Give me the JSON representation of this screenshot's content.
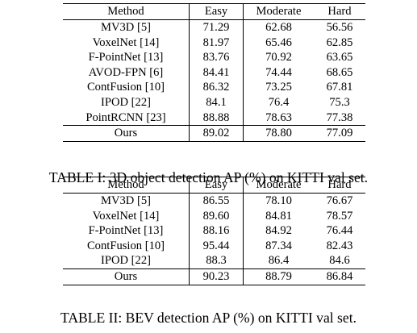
{
  "tables": [
    {
      "caption": "TABLE I: 3D object detection AP (%) on KITTI val set.",
      "headers": [
        "Method",
        "Easy",
        "Moderate",
        "Hard"
      ],
      "rows": [
        {
          "method": "MV3D [5]",
          "easy": "71.29",
          "moderate": "62.68",
          "hard": "56.56"
        },
        {
          "method": "VoxelNet [14]",
          "easy": "81.97",
          "moderate": "65.46",
          "hard": "62.85"
        },
        {
          "method": "F-PointNet [13]",
          "easy": "83.76",
          "moderate": "70.92",
          "hard": "63.65"
        },
        {
          "method": "AVOD-FPN [6]",
          "easy": "84.41",
          "moderate": "74.44",
          "hard": "68.65"
        },
        {
          "method": "ContFusion [10]",
          "easy": "86.32",
          "moderate": "73.25",
          "hard": "67.81"
        },
        {
          "method": "IPOD [22]",
          "easy": "84.1",
          "moderate": "76.4",
          "hard": "75.3"
        },
        {
          "method": "PointRCNN [23]",
          "easy": "88.88",
          "moderate": "78.63",
          "hard": "77.38"
        },
        {
          "method": "Ours",
          "easy": "89.02",
          "moderate": "78.80",
          "hard": "77.09"
        }
      ]
    },
    {
      "caption": "TABLE II: BEV detection AP (%) on KITTI val set.",
      "headers": [
        "Method",
        "Easy",
        "Moderate",
        "Hard"
      ],
      "rows": [
        {
          "method": "MV3D [5]",
          "easy": "86.55",
          "moderate": "78.10",
          "hard": "76.67"
        },
        {
          "method": "VoxelNet [14]",
          "easy": "89.60",
          "moderate": "84.81",
          "hard": "78.57"
        },
        {
          "method": "F-PointNet [13]",
          "easy": "88.16",
          "moderate": "84.92",
          "hard": "76.44"
        },
        {
          "method": "ContFusion [10]",
          "easy": "95.44",
          "moderate": "87.34",
          "hard": "82.43"
        },
        {
          "method": "IPOD [22]",
          "easy": "88.3",
          "moderate": "86.4",
          "hard": "84.6"
        },
        {
          "method": "Ours",
          "easy": "90.23",
          "moderate": "88.79",
          "hard": "86.84"
        }
      ]
    }
  ]
}
